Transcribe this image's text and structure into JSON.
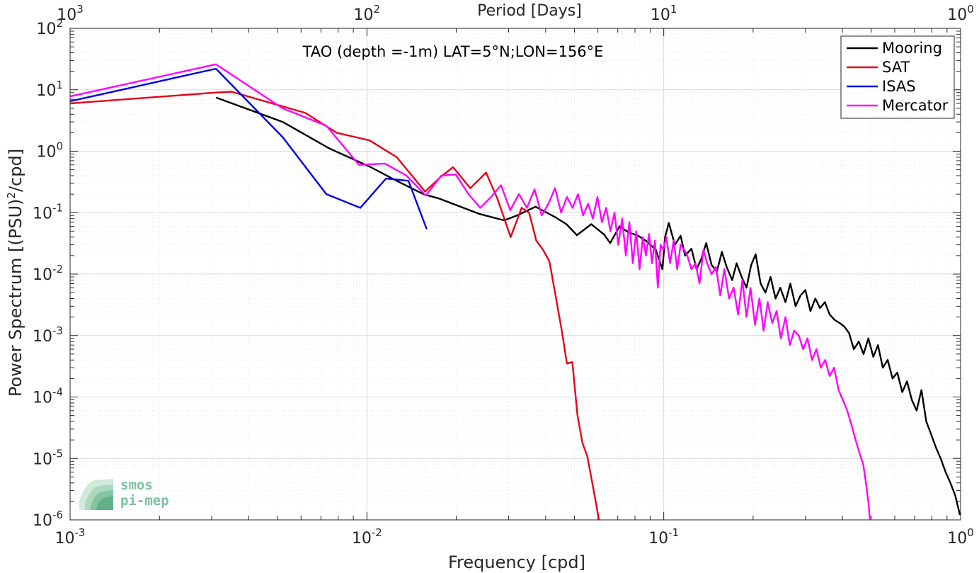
{
  "chart_data": {
    "type": "line",
    "title": "TAO (depth =-1m) LAT=5°N;LON=156°E",
    "xlabel": "Frequency [cpd]",
    "ylabel": "Power Spectrum [(PSU)²/cpd]",
    "ylabel_parts": {
      "prefix": "Power Spectrum [(PSU)",
      "sup": "2",
      "suffix": "/cpd]"
    },
    "top_xlabel": "Period [Days]",
    "x_scale": "log",
    "y_scale": "log",
    "xlim": [
      0.001,
      1
    ],
    "ylim": [
      1e-06,
      100
    ],
    "grid": true,
    "legend_position": "top-right",
    "x_ticks": [
      {
        "base": "10",
        "exp": "-3",
        "value": 0.001
      },
      {
        "base": "10",
        "exp": "-2",
        "value": 0.01
      },
      {
        "base": "10",
        "exp": "-1",
        "value": 0.1
      },
      {
        "base": "10",
        "exp": "0",
        "value": 1
      }
    ],
    "top_ticks": [
      {
        "base": "10",
        "exp": "3",
        "value": 0.001
      },
      {
        "base": "10",
        "exp": "2",
        "value": 0.01
      },
      {
        "base": "10",
        "exp": "1",
        "value": 0.1
      },
      {
        "base": "10",
        "exp": "0",
        "value": 1
      }
    ],
    "y_ticks": [
      {
        "base": "10",
        "exp": "2",
        "value": 100
      },
      {
        "base": "10",
        "exp": "1",
        "value": 10
      },
      {
        "base": "10",
        "exp": "0",
        "value": 1
      },
      {
        "base": "10",
        "exp": "-1",
        "value": 0.1
      },
      {
        "base": "10",
        "exp": "-2",
        "value": 0.01
      },
      {
        "base": "10",
        "exp": "-3",
        "value": 0.001
      },
      {
        "base": "10",
        "exp": "-4",
        "value": 0.0001
      },
      {
        "base": "10",
        "exp": "-5",
        "value": 1e-05
      },
      {
        "base": "10",
        "exp": "-6",
        "value": 1e-06
      }
    ],
    "series": [
      {
        "name": "Mooring",
        "color": "#000000",
        "points": [
          [
            0.0031,
            7.5
          ],
          [
            0.0052,
            3.0
          ],
          [
            0.0075,
            1.1
          ],
          [
            0.0103,
            0.55
          ],
          [
            0.0126,
            0.33
          ],
          [
            0.0155,
            0.2
          ],
          [
            0.0175,
            0.17
          ],
          [
            0.024,
            0.095
          ],
          [
            0.029,
            0.075
          ],
          [
            0.032,
            0.09
          ],
          [
            0.037,
            0.125
          ],
          [
            0.043,
            0.085
          ],
          [
            0.047,
            0.065
          ],
          [
            0.051,
            0.043
          ],
          [
            0.057,
            0.065
          ],
          [
            0.063,
            0.044
          ],
          [
            0.066,
            0.032
          ],
          [
            0.071,
            0.06
          ],
          [
            0.076,
            0.048
          ],
          [
            0.082,
            0.042
          ],
          [
            0.087,
            0.035
          ],
          [
            0.094,
            0.025
          ],
          [
            0.099,
            0.012
          ],
          [
            0.101,
            0.04
          ],
          [
            0.104,
            0.068
          ],
          [
            0.109,
            0.03
          ],
          [
            0.114,
            0.042
          ],
          [
            0.118,
            0.02
          ],
          [
            0.124,
            0.026
          ],
          [
            0.129,
            0.012
          ],
          [
            0.134,
            0.018
          ],
          [
            0.139,
            0.032
          ],
          [
            0.145,
            0.014
          ],
          [
            0.151,
            0.011
          ],
          [
            0.157,
            0.023
          ],
          [
            0.163,
            0.013
          ],
          [
            0.17,
            0.008
          ],
          [
            0.176,
            0.015
          ],
          [
            0.183,
            0.009
          ],
          [
            0.19,
            0.006
          ],
          [
            0.197,
            0.014
          ],
          [
            0.204,
            0.021
          ],
          [
            0.212,
            0.007
          ],
          [
            0.22,
            0.005
          ],
          [
            0.229,
            0.009
          ],
          [
            0.238,
            0.004
          ],
          [
            0.247,
            0.006
          ],
          [
            0.257,
            0.0035
          ],
          [
            0.267,
            0.007
          ],
          [
            0.278,
            0.003
          ],
          [
            0.289,
            0.0045
          ],
          [
            0.3,
            0.0055
          ],
          [
            0.312,
            0.0025
          ],
          [
            0.324,
            0.004
          ],
          [
            0.336,
            0.0028
          ],
          [
            0.349,
            0.0035
          ],
          [
            0.362,
            0.0022
          ],
          [
            0.376,
            0.0018
          ],
          [
            0.391,
            0.0016
          ],
          [
            0.406,
            0.0014
          ],
          [
            0.421,
            0.0011
          ],
          [
            0.437,
            0.0006
          ],
          [
            0.454,
            0.0008
          ],
          [
            0.471,
            0.0005
          ],
          [
            0.489,
            0.0009
          ],
          [
            0.508,
            0.00045
          ],
          [
            0.527,
            0.0007
          ],
          [
            0.547,
            0.0003
          ],
          [
            0.568,
            0.0004
          ],
          [
            0.59,
            0.0002
          ],
          [
            0.612,
            0.00025
          ],
          [
            0.636,
            0.00012
          ],
          [
            0.66,
            0.00018
          ],
          [
            0.685,
            9e-05
          ],
          [
            0.711,
            6e-05
          ],
          [
            0.738,
            0.00013
          ],
          [
            0.766,
            4e-05
          ],
          [
            0.795,
            2.5e-05
          ],
          [
            0.826,
            1.5e-05
          ],
          [
            0.857,
            1e-05
          ],
          [
            0.89,
            6e-06
          ],
          [
            0.924,
            4e-06
          ],
          [
            0.959,
            2.5e-06
          ],
          [
            0.995,
            1.2e-06
          ]
        ]
      },
      {
        "name": "SAT",
        "color": "#e6001a",
        "points": [
          [
            0.001,
            6.0
          ],
          [
            0.0031,
            9.0
          ],
          [
            0.0035,
            9.3
          ],
          [
            0.0062,
            4.2
          ],
          [
            0.0079,
            2.0
          ],
          [
            0.0102,
            1.5
          ],
          [
            0.0126,
            0.8
          ],
          [
            0.0149,
            0.3
          ],
          [
            0.0157,
            0.22
          ],
          [
            0.0177,
            0.38
          ],
          [
            0.0195,
            0.55
          ],
          [
            0.0223,
            0.25
          ],
          [
            0.0252,
            0.45
          ],
          [
            0.0275,
            0.17
          ],
          [
            0.0305,
            0.04
          ],
          [
            0.0332,
            0.12
          ],
          [
            0.0352,
            0.1
          ],
          [
            0.0372,
            0.035
          ],
          [
            0.0392,
            0.025
          ],
          [
            0.0412,
            0.016
          ],
          [
            0.0432,
            0.0045
          ],
          [
            0.0452,
            0.0013
          ],
          [
            0.0472,
            0.00035
          ],
          [
            0.0492,
            0.00037
          ],
          [
            0.0512,
            5e-05
          ],
          [
            0.0532,
            1.8e-05
          ],
          [
            0.0552,
            1.1e-05
          ],
          [
            0.0572,
            4.5e-06
          ],
          [
            0.0592,
            1.8e-06
          ],
          [
            0.0605,
            1e-06
          ]
        ]
      },
      {
        "name": "ISAS",
        "color": "#0000e6",
        "points": [
          [
            0.001,
            6.5
          ],
          [
            0.0031,
            22
          ],
          [
            0.0052,
            1.7
          ],
          [
            0.0073,
            0.2
          ],
          [
            0.0095,
            0.12
          ],
          [
            0.0116,
            0.36
          ],
          [
            0.0138,
            0.33
          ],
          [
            0.0159,
            0.054
          ]
        ]
      },
      {
        "name": "Mercator",
        "color": "#ff00ff",
        "points": [
          [
            0.001,
            7.8
          ],
          [
            0.0031,
            26
          ],
          [
            0.0052,
            5.0
          ],
          [
            0.0073,
            2.6
          ],
          [
            0.0094,
            0.6
          ],
          [
            0.0115,
            0.63
          ],
          [
            0.0136,
            0.4
          ],
          [
            0.0158,
            0.19
          ],
          [
            0.0178,
            0.4
          ],
          [
            0.0199,
            0.42
          ],
          [
            0.022,
            0.2
          ],
          [
            0.0241,
            0.12
          ],
          [
            0.0262,
            0.18
          ],
          [
            0.0283,
            0.28
          ],
          [
            0.0304,
            0.11
          ],
          [
            0.0325,
            0.2
          ],
          [
            0.0346,
            0.12
          ],
          [
            0.0367,
            0.24
          ],
          [
            0.0388,
            0.09
          ],
          [
            0.0409,
            0.14
          ],
          [
            0.043,
            0.25
          ],
          [
            0.0451,
            0.1
          ],
          [
            0.0472,
            0.18
          ],
          [
            0.0493,
            0.12
          ],
          [
            0.0514,
            0.2
          ],
          [
            0.0535,
            0.09
          ],
          [
            0.0556,
            0.14
          ],
          [
            0.0577,
            0.08
          ],
          [
            0.0598,
            0.18
          ],
          [
            0.0619,
            0.07
          ],
          [
            0.064,
            0.12
          ],
          [
            0.0661,
            0.05
          ],
          [
            0.0682,
            0.1
          ],
          [
            0.0703,
            0.03
          ],
          [
            0.0724,
            0.08
          ],
          [
            0.0745,
            0.02
          ],
          [
            0.0766,
            0.07
          ],
          [
            0.0787,
            0.015
          ],
          [
            0.0808,
            0.05
          ],
          [
            0.0829,
            0.012
          ],
          [
            0.085,
            0.04
          ],
          [
            0.0871,
            0.02
          ],
          [
            0.0892,
            0.045
          ],
          [
            0.0913,
            0.015
          ],
          [
            0.0934,
            0.035
          ],
          [
            0.0955,
            0.006
          ],
          [
            0.0976,
            0.03
          ],
          [
            0.0997,
            0.025
          ],
          [
            0.102,
            0.04
          ],
          [
            0.105,
            0.015
          ],
          [
            0.108,
            0.035
          ],
          [
            0.111,
            0.012
          ],
          [
            0.114,
            0.03
          ],
          [
            0.117,
            0.025
          ],
          [
            0.12,
            0.02
          ],
          [
            0.124,
            0.012
          ],
          [
            0.128,
            0.015
          ],
          [
            0.132,
            0.007
          ],
          [
            0.136,
            0.025
          ],
          [
            0.14,
            0.015
          ],
          [
            0.145,
            0.01
          ],
          [
            0.15,
            0.013
          ],
          [
            0.155,
            0.0045
          ],
          [
            0.16,
            0.012
          ],
          [
            0.166,
            0.004
          ],
          [
            0.172,
            0.006
          ],
          [
            0.178,
            0.0022
          ],
          [
            0.184,
            0.008
          ],
          [
            0.19,
            0.002
          ],
          [
            0.196,
            0.006
          ],
          [
            0.203,
            0.0015
          ],
          [
            0.21,
            0.004
          ],
          [
            0.217,
            0.0012
          ],
          [
            0.224,
            0.0035
          ],
          [
            0.232,
            0.0016
          ],
          [
            0.24,
            0.0025
          ],
          [
            0.248,
            0.0009
          ],
          [
            0.257,
            0.002
          ],
          [
            0.266,
            0.0007
          ],
          [
            0.275,
            0.0012
          ],
          [
            0.285,
            0.001
          ],
          [
            0.295,
            0.0006
          ],
          [
            0.305,
            0.0009
          ],
          [
            0.316,
            0.0004
          ],
          [
            0.327,
            0.0006
          ],
          [
            0.338,
            0.0003
          ],
          [
            0.35,
            0.0004
          ],
          [
            0.362,
            0.00022
          ],
          [
            0.375,
            0.0003
          ],
          [
            0.388,
            0.00013
          ],
          [
            0.401,
            9e-05
          ],
          [
            0.415,
            6e-05
          ],
          [
            0.429,
            3.5e-05
          ],
          [
            0.443,
            2e-05
          ],
          [
            0.457,
            1.2e-05
          ],
          [
            0.47,
            8e-06
          ],
          [
            0.48,
            4e-06
          ],
          [
            0.49,
            1.8e-06
          ],
          [
            0.495,
            1e-06
          ]
        ]
      }
    ]
  },
  "logo": {
    "line1": "smos",
    "line2": "pi-mep"
  }
}
